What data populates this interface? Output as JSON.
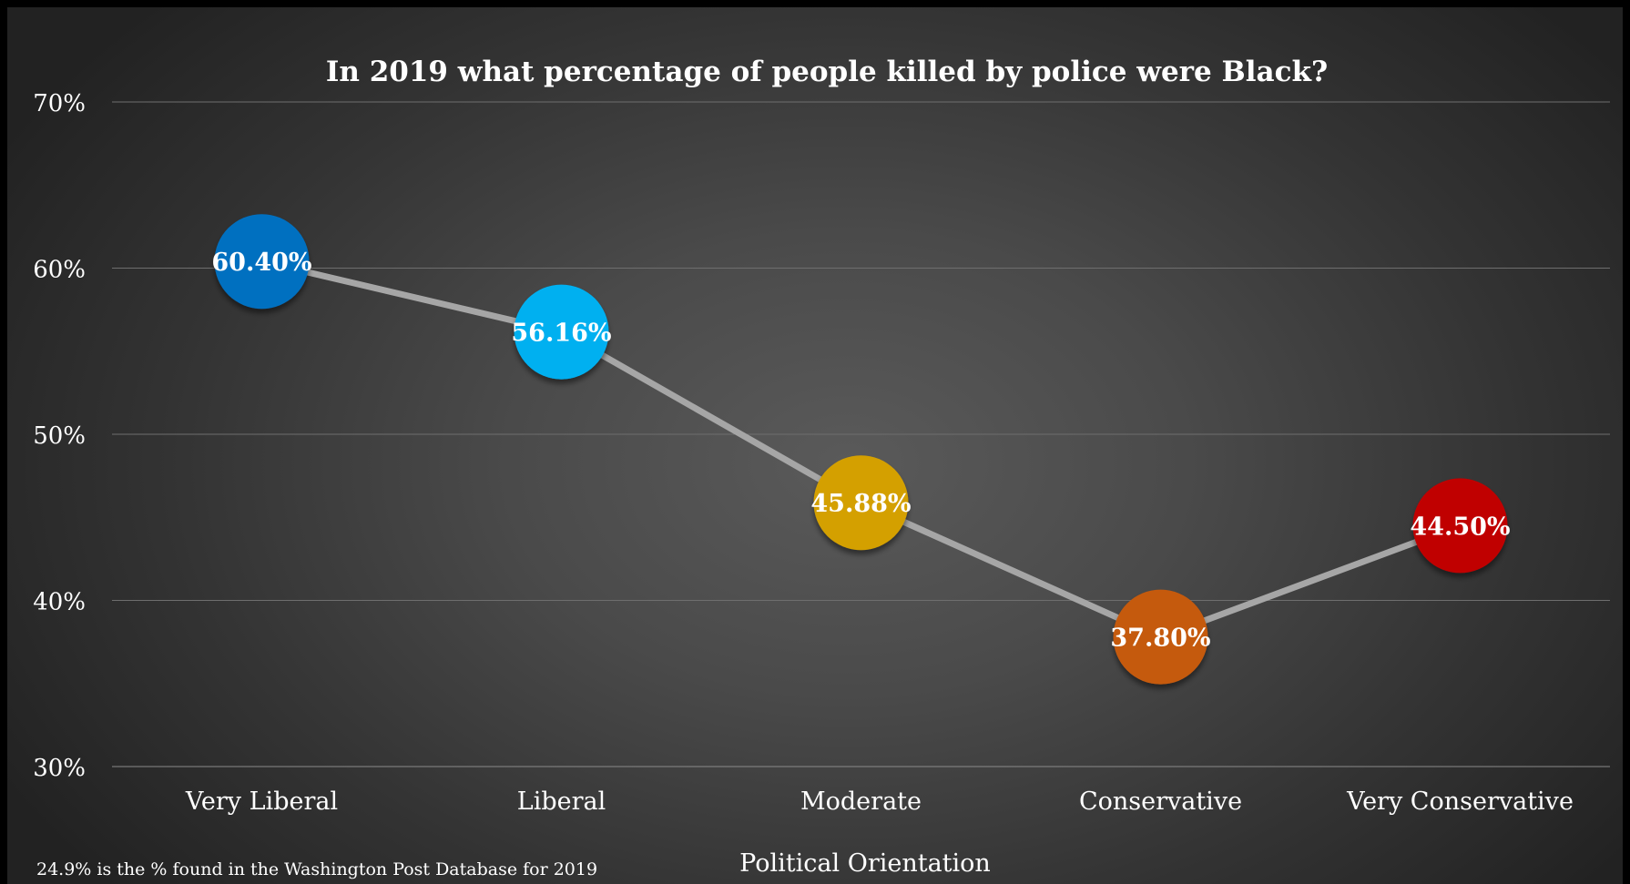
{
  "chart_data": {
    "type": "line",
    "title": "In 2019 what percentage of people killed by police were Black?",
    "xlabel": "Political Orientation",
    "ylabel": "",
    "ylim": [
      30,
      70
    ],
    "yticks": [
      "30%",
      "40%",
      "50%",
      "60%",
      "70%"
    ],
    "ytick_values": [
      30,
      40,
      50,
      60,
      70
    ],
    "grid": true,
    "categories": [
      "Very Liberal",
      "Liberal",
      "Moderate",
      "Conservative",
      "Very Conservative"
    ],
    "series": [
      {
        "values": [
          60.4,
          56.16,
          45.88,
          37.8,
          44.5
        ],
        "labels": [
          "60.40%",
          "56.16%",
          "45.88%",
          "37.80%",
          "44.50%"
        ],
        "point_colors": [
          "#0070C0",
          "#00B0F0",
          "#D4A000",
          "#C55A11",
          "#C00000"
        ],
        "line_color": "#A6A6A6"
      }
    ],
    "footnote": "24.9% is the % found in the Washington Post Database for 2019"
  }
}
